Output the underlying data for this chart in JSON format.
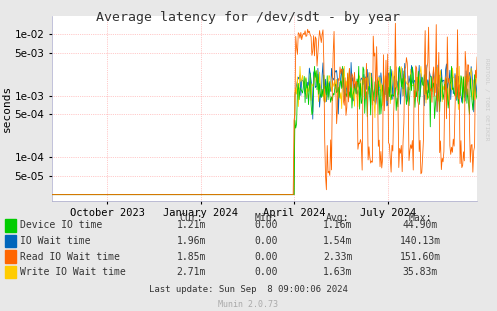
{
  "title": "Average latency for /dev/sdt - by year",
  "ylabel": "seconds",
  "watermark": "RRDTOOL / TOBI OETIKER",
  "munin_version": "Munin 2.0.73",
  "background_color": "#e8e8e8",
  "plot_bg_color": "#ffffff",
  "grid_color": "#ff9999",
  "ylim_min": 2e-05,
  "ylim_max": 0.02,
  "legend_items": [
    {
      "label": "Device IO time",
      "color": "#00cc00"
    },
    {
      "label": "IO Wait time",
      "color": "#0066bb"
    },
    {
      "label": "Read IO Wait time",
      "color": "#ff6600"
    },
    {
      "label": "Write IO Wait time",
      "color": "#ffcc00"
    }
  ],
  "legend_cols": [
    {
      "header": "Cur:",
      "values": [
        "1.21m",
        "1.96m",
        "1.85m",
        "2.71m"
      ]
    },
    {
      "header": "Min:",
      "values": [
        "0.00",
        "0.00",
        "0.00",
        "0.00"
      ]
    },
    {
      "header": "Avg:",
      "values": [
        "1.16m",
        "1.54m",
        "2.33m",
        "1.63m"
      ]
    },
    {
      "header": "Max:",
      "values": [
        "44.90m",
        "140.13m",
        "151.60m",
        "35.83m"
      ]
    }
  ],
  "last_update": "Last update: Sun Sep  8 09:00:06 2024",
  "xtick_labels": [
    "October 2023",
    "January 2024",
    "April 2024",
    "July 2024"
  ],
  "xtick_positions": [
    0.13,
    0.35,
    0.57,
    0.79
  ]
}
